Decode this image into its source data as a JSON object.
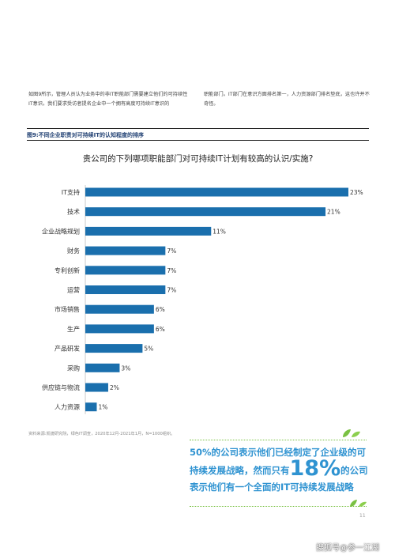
{
  "intro": {
    "left": "如图9所示，管理人员认为业务中的非IT职能部门需要建立他们的可持续性IT意识。我们要求受访者提名企业中一个拥有高度可持续IT意识的",
    "right": "职能部门。IT部门在意识方面排名第一，人力资源部门排名垫底，这也许并不奇怪。"
  },
  "figure": {
    "label": "图9:不同企业职责对可持续IT的认知程度的排序"
  },
  "chart_data": {
    "type": "bar",
    "orientation": "horizontal",
    "title": "贵公司的下列哪项职能部门对可持续IT计划有较高的认识/实施?",
    "categories": [
      "IT支持",
      "技术",
      "企业战略规划",
      "财务",
      "专利创新",
      "运营",
      "市场销售",
      "生产",
      "产品研发",
      "采购",
      "供应链与物流",
      "人力资源"
    ],
    "values": [
      23,
      21,
      11,
      7,
      7,
      7,
      6,
      6,
      5,
      3,
      2,
      1
    ],
    "value_suffix": "%",
    "xlim": [
      0,
      23
    ],
    "grid": false,
    "bar_color": "#1a6fad"
  },
  "source": "资料来源:凯捷研究院，绿色IT调查，2020年12月-2021年1月，N=1000组织。",
  "callout": {
    "line1": "50%的公司表示他们已经制定了企业级的可",
    "line2a": "持续发展战略，然而只有",
    "big": "18%",
    "line2b": "的公司",
    "line3": "表示他们有一个全面的IT可持续发展战略"
  },
  "page_number": "11",
  "watermark": "搜狐号@参一江湖"
}
